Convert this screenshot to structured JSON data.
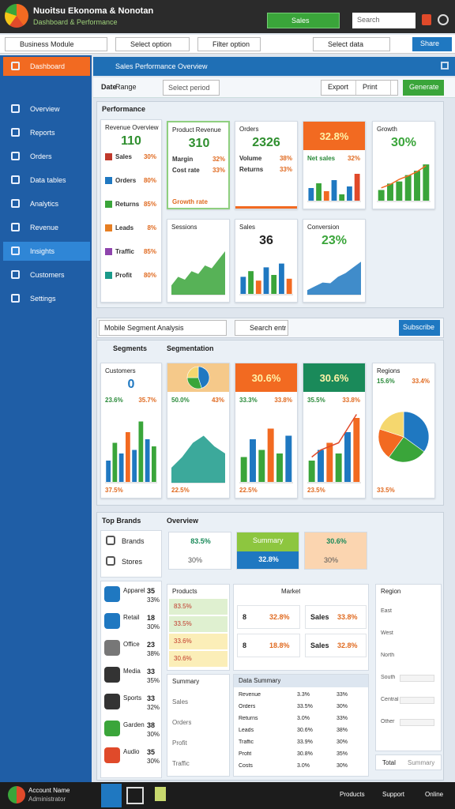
{
  "header": {
    "title": "Nuoitsu Ekonoma & Nonotan",
    "subtitle": "Dashboard & Performance",
    "tab": "Sales",
    "search": "Search"
  },
  "toolbar": {
    "items": [
      "Business Module",
      "Select option",
      "Filter option",
      "Select data"
    ],
    "button": "Share"
  },
  "sidebar": [
    "Dashboard",
    "Overview",
    "Reports",
    "Orders",
    "Data tables",
    "Analytics",
    "Revenue",
    "Insights",
    "Customers",
    "Settings"
  ],
  "banner": "Sales Performance Overview",
  "filters": {
    "label": "Date",
    "value": "Range",
    "select": "Select period",
    "buttons": [
      "Export",
      "Print"
    ],
    "action": "Generate"
  },
  "performance": {
    "title": "Performance",
    "summary": {
      "title": "Revenue Overview",
      "value": "110",
      "value_color": "#2f8f2f",
      "rows": [
        {
          "label": "Sales",
          "value": "30%",
          "color": "#c0392b"
        },
        {
          "label": "Orders",
          "value": "80%",
          "color": "#1f78c1"
        },
        {
          "label": "Returns",
          "value": "85%",
          "color": "#3aa53a"
        },
        {
          "label": "Leads",
          "value": "8%",
          "color": "#e67e22"
        },
        {
          "label": "Traffic",
          "value": "85%",
          "color": "#8e44ad"
        },
        {
          "label": "Profit",
          "value": "80%",
          "color": "#1a9a8a"
        }
      ]
    },
    "cards": [
      {
        "title": "Product Revenue",
        "value": "310",
        "value_color": "#2f8f2f",
        "border": "#8fcf7f",
        "rows": [
          {
            "label": "Margin",
            "value": "32%"
          },
          {
            "label": "Cost rate",
            "value": "33%"
          }
        ],
        "footer": "Growth rate"
      },
      {
        "title": "Orders",
        "value": "2326",
        "value_color": "#2f8f2f",
        "accent": "#f26a21",
        "rows": [
          {
            "label": "Volume",
            "value": "38%"
          },
          {
            "label": "Returns",
            "value": "33%"
          }
        ]
      },
      {
        "header": "32.8%",
        "header_color": "#f26a21",
        "rows": [
          {
            "label": "Net sales",
            "value": "32%"
          }
        ],
        "chart": {
          "kind": "bar",
          "ylim": [
            0,
            100
          ],
          "values": [
            40,
            55,
            30,
            65,
            20,
            45,
            85
          ],
          "colors": [
            "#1f78c1",
            "#3aa53a",
            "#f26a21",
            "#1f78c1",
            "#3aa53a",
            "#1f78c1",
            "#e04a2a"
          ]
        }
      },
      {
        "title": "Growth",
        "value": "30%",
        "value_color": "#3aa53a",
        "chart": {
          "kind": "bar",
          "ylim": [
            0,
            100
          ],
          "values": [
            25,
            40,
            45,
            60,
            70,
            85
          ],
          "colors": [
            "#3aa53a"
          ],
          "line": [
            30,
            38,
            50,
            58,
            68,
            82
          ],
          "line_color": "#f26a21"
        }
      },
      {
        "title": "Sessions",
        "chart": {
          "kind": "area",
          "ylim": [
            0,
            100
          ],
          "values": [
            15,
            30,
            25,
            40,
            35,
            50,
            45,
            60,
            75
          ],
          "color": "#3aa53a"
        }
      },
      {
        "title": "Sales",
        "value": "36",
        "chart": {
          "kind": "bar",
          "ylim": [
            0,
            100
          ],
          "values": [
            45,
            60,
            35,
            70,
            50,
            80,
            40
          ],
          "colors": [
            "#1f78c1",
            "#3aa53a",
            "#f26a21",
            "#1f78c1",
            "#3aa53a",
            "#1f78c1",
            "#f26a21"
          ]
        }
      },
      {
        "title": "Conversion",
        "value": "23%",
        "value_color": "#3aa53a",
        "chart": {
          "kind": "area",
          "ylim": [
            0,
            100
          ],
          "values": [
            10,
            20,
            30,
            28,
            45,
            55,
            70,
            85
          ],
          "color": "#1f78c1"
        }
      }
    ]
  },
  "segments": {
    "select": "Mobile Segment Analysis",
    "search": "Search entries",
    "button": "Subscribe",
    "left": "Segments",
    "right": "Segmentation",
    "cards": [
      {
        "title": "Customers",
        "value": "0",
        "value_color": "#1f78c1",
        "rows": [
          {
            "label": "23.6%",
            "value": "35.7%"
          }
        ],
        "chart": {
          "kind": "bar",
          "ylim": [
            0,
            100
          ],
          "values": [
            30,
            55,
            40,
            70,
            45,
            85,
            60,
            50
          ],
          "colors": [
            "#1f78c1",
            "#3aa53a",
            "#1f78c1",
            "#f26a21",
            "#1f78c1",
            "#3aa53a"
          ]
        },
        "footer": "37.5%"
      },
      {
        "header_color": "#f5c98a",
        "header_chart": {
          "kind": "pie",
          "values": [
            45,
            30,
            25
          ],
          "colors": [
            "#1f78c1",
            "#3aa53a",
            "#f5d76e"
          ]
        },
        "rows": [
          {
            "label": "50.0%",
            "value": "43%"
          }
        ],
        "chart": {
          "kind": "area",
          "ylim": [
            0,
            100
          ],
          "values": [
            20,
            35,
            55,
            65,
            50,
            40
          ],
          "color": "#1a9a8a"
        },
        "footer": "22.5%"
      },
      {
        "header": "30.6%",
        "header_color": "#f26a21",
        "rows": [
          {
            "label": "33.3%",
            "value": "33.8%"
          }
        ],
        "chart": {
          "kind": "bar",
          "ylim": [
            0,
            100
          ],
          "values": [
            35,
            60,
            45,
            75,
            40,
            65
          ],
          "colors": [
            "#3aa53a",
            "#1f78c1",
            "#3aa53a",
            "#f26a21"
          ]
        },
        "footer": "22.5%"
      },
      {
        "header": "30.6%",
        "header_color": "#1a8a5a",
        "rows": [
          {
            "label": "35.5%",
            "value": "33.8%"
          }
        ],
        "chart": {
          "kind": "bar",
          "ylim": [
            0,
            100
          ],
          "values": [
            30,
            45,
            55,
            40,
            70,
            90
          ],
          "colors": [
            "#3aa53a",
            "#1f78c1",
            "#f26a21"
          ],
          "line": [
            35,
            45,
            50,
            55,
            75,
            95
          ],
          "line_color": "#e04a2a"
        },
        "footer": "23.5%"
      },
      {
        "title": "Regions",
        "rows": [
          {
            "label": "15.6%",
            "value": "33.4%"
          }
        ],
        "chart": {
          "kind": "pie",
          "values": [
            35,
            25,
            20,
            20
          ],
          "colors": [
            "#1f78c1",
            "#3aa53a",
            "#f26a21",
            "#f5d76e"
          ]
        },
        "footer": "33.5%"
      }
    ]
  },
  "brands": {
    "title": "Top Brands",
    "items": [
      "Brands",
      "Stores"
    ],
    "list": [
      {
        "label": "Apparel",
        "value": "35",
        "sub": "33%",
        "color": "#1f78c1"
      },
      {
        "label": "Retail",
        "value": "18",
        "sub": "30%",
        "color": "#1f78c1"
      },
      {
        "label": "Office",
        "value": "23",
        "sub": "38%",
        "color": "#777"
      },
      {
        "label": "Media",
        "value": "33",
        "sub": "35%",
        "color": "#333"
      },
      {
        "label": "Sports",
        "value": "33",
        "sub": "32%",
        "color": "#333"
      },
      {
        "label": "Garden",
        "value": "38",
        "sub": "30%",
        "color": "#3aa53a"
      },
      {
        "label": "Audio",
        "value": "35",
        "sub": "30%",
        "color": "#e04a2a"
      }
    ]
  },
  "overview": {
    "title": "Overview",
    "chips": [
      {
        "value": "83.5%",
        "sub": "30%",
        "bg": "#ffffff"
      },
      {
        "label": "Summary",
        "value": "32.8%",
        "bg": "#8dc63f"
      },
      {
        "value": "30.6%",
        "sub": "30%",
        "bg": "#fbd5b0"
      }
    ],
    "products": {
      "title": "Products",
      "rows": [
        "83.5%",
        "33.5%",
        "33.6%",
        "30.6%"
      ]
    },
    "market": {
      "title": "Market",
      "rows": [
        {
          "label": "8",
          "value": "32.8%"
        },
        {
          "label": "8",
          "value": "18.8%"
        }
      ]
    },
    "sales": {
      "rows": [
        {
          "label": "Sales",
          "value": "33.8%"
        },
        {
          "label": "Sales",
          "value": "32.8%"
        }
      ]
    },
    "summary": {
      "title": "Summary",
      "rows": [
        "Sales",
        "Orders",
        "Profit",
        "Traffic"
      ]
    },
    "table": {
      "title": "Data Summary",
      "rows": [
        [
          "Revenue",
          "3.3%",
          "33%"
        ],
        [
          "Orders",
          "33.5%",
          "30%"
        ],
        [
          "Returns",
          "3.0%",
          "33%"
        ],
        [
          "Leads",
          "30.6%",
          "38%"
        ],
        [
          "Traffic",
          "33.9%",
          "30%"
        ],
        [
          "Profit",
          "30.8%",
          "35%"
        ],
        [
          "Costs",
          "3.0%",
          "30%"
        ]
      ]
    },
    "side": {
      "title": "Region",
      "rows": [
        "East",
        "West",
        "North",
        "South",
        "Central",
        "Other"
      ],
      "footer": "Total",
      "note": "Summary"
    }
  },
  "taskbar": {
    "user": "Account Name",
    "role": "Administrator",
    "links": [
      "Products",
      "Support",
      "Online"
    ]
  }
}
